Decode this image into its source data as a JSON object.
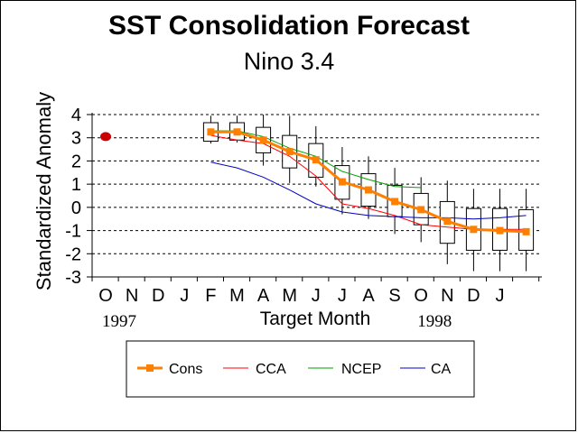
{
  "chart_data": {
    "type": "line",
    "title": "SST Consolidation Forecast",
    "subtitle": "Nino 3.4",
    "xlabel": "Target Month",
    "ylabel": "Standardized Anomaly",
    "ylim": [
      -3,
      4
    ],
    "yticks": [
      4,
      3,
      2,
      1,
      0,
      -1,
      -2,
      -3
    ],
    "categories": [
      "O",
      "N",
      "D",
      "J",
      "F",
      "M",
      "A",
      "M",
      "J",
      "J",
      "A",
      "S",
      "O",
      "N",
      "D",
      "J"
    ],
    "year_labels": [
      {
        "text": "1997",
        "category_index": 0
      },
      {
        "text": "1998",
        "category_index": 12
      }
    ],
    "observed": {
      "category_index": 0,
      "value": 3.05,
      "color": "#cc0000"
    },
    "gridlines": "horizontal-dashed",
    "legend_position": "bottom",
    "boxes": [
      {
        "index": 4,
        "wlo": 2.75,
        "q1": 2.85,
        "q3": 3.65,
        "whi": 3.95
      },
      {
        "index": 5,
        "wlo": 2.8,
        "q1": 2.9,
        "q3": 3.65,
        "whi": 3.95
      },
      {
        "index": 6,
        "wlo": 1.8,
        "q1": 2.35,
        "q3": 3.45,
        "whi": 4.0
      },
      {
        "index": 7,
        "wlo": 1.05,
        "q1": 1.7,
        "q3": 3.1,
        "whi": 3.95
      },
      {
        "index": 8,
        "wlo": 0.9,
        "q1": 1.3,
        "q3": 2.75,
        "whi": 3.5
      },
      {
        "index": 9,
        "wlo": -0.3,
        "q1": 0.35,
        "q3": 1.8,
        "whi": 2.6
      },
      {
        "index": 10,
        "wlo": -0.5,
        "q1": 0.05,
        "q3": 1.45,
        "whi": 2.2
      },
      {
        "index": 11,
        "wlo": -1.15,
        "q1": -0.4,
        "q3": 0.95,
        "whi": 1.7
      },
      {
        "index": 12,
        "wlo": -1.5,
        "q1": -0.75,
        "q3": 0.6,
        "whi": 1.3
      },
      {
        "index": 13,
        "wlo": -2.45,
        "q1": -1.55,
        "q3": 0.25,
        "whi": 1.15
      },
      {
        "index": 14,
        "wlo": -2.75,
        "q1": -1.85,
        "q3": -0.05,
        "whi": 0.8
      },
      {
        "index": 15,
        "wlo": -2.75,
        "q1": -1.85,
        "q3": -0.05,
        "whi": 0.8
      },
      {
        "index": 16,
        "wlo": -2.75,
        "q1": -1.85,
        "q3": -0.1,
        "whi": 0.8
      }
    ],
    "series": [
      {
        "name": "Cons",
        "color": "#ff8000",
        "marker": "square",
        "x": [
          4,
          5,
          6,
          7,
          8,
          9,
          10,
          11,
          12,
          13,
          14,
          15,
          16
        ],
        "values": [
          3.25,
          3.25,
          2.9,
          2.4,
          2.05,
          1.1,
          0.75,
          0.25,
          -0.1,
          -0.6,
          -0.95,
          -1.0,
          -1.05
        ]
      },
      {
        "name": "CCA",
        "color": "#ff0000",
        "x": [
          4,
          5,
          6,
          7,
          8,
          9,
          10,
          11,
          12,
          13,
          14,
          15,
          16
        ],
        "values": [
          3.1,
          2.9,
          2.75,
          2.2,
          1.35,
          0.15,
          -0.05,
          -0.35,
          -0.75,
          -0.85,
          -0.95,
          -0.95,
          -0.95
        ]
      },
      {
        "name": "NCEP",
        "color": "#00a000",
        "x": [
          4,
          5,
          6,
          7,
          8,
          9,
          10,
          11,
          12
        ],
        "values": [
          3.3,
          3.3,
          3.05,
          2.55,
          2.2,
          1.55,
          1.2,
          0.9,
          0.85
        ]
      },
      {
        "name": "CA",
        "color": "#0000c0",
        "x": [
          4,
          5,
          6,
          7,
          8,
          9,
          10,
          11,
          12,
          13,
          14,
          15,
          16
        ],
        "values": [
          1.95,
          1.7,
          1.3,
          0.75,
          0.15,
          -0.2,
          -0.35,
          -0.4,
          -0.45,
          -0.45,
          -0.5,
          -0.45,
          -0.35
        ]
      }
    ]
  }
}
